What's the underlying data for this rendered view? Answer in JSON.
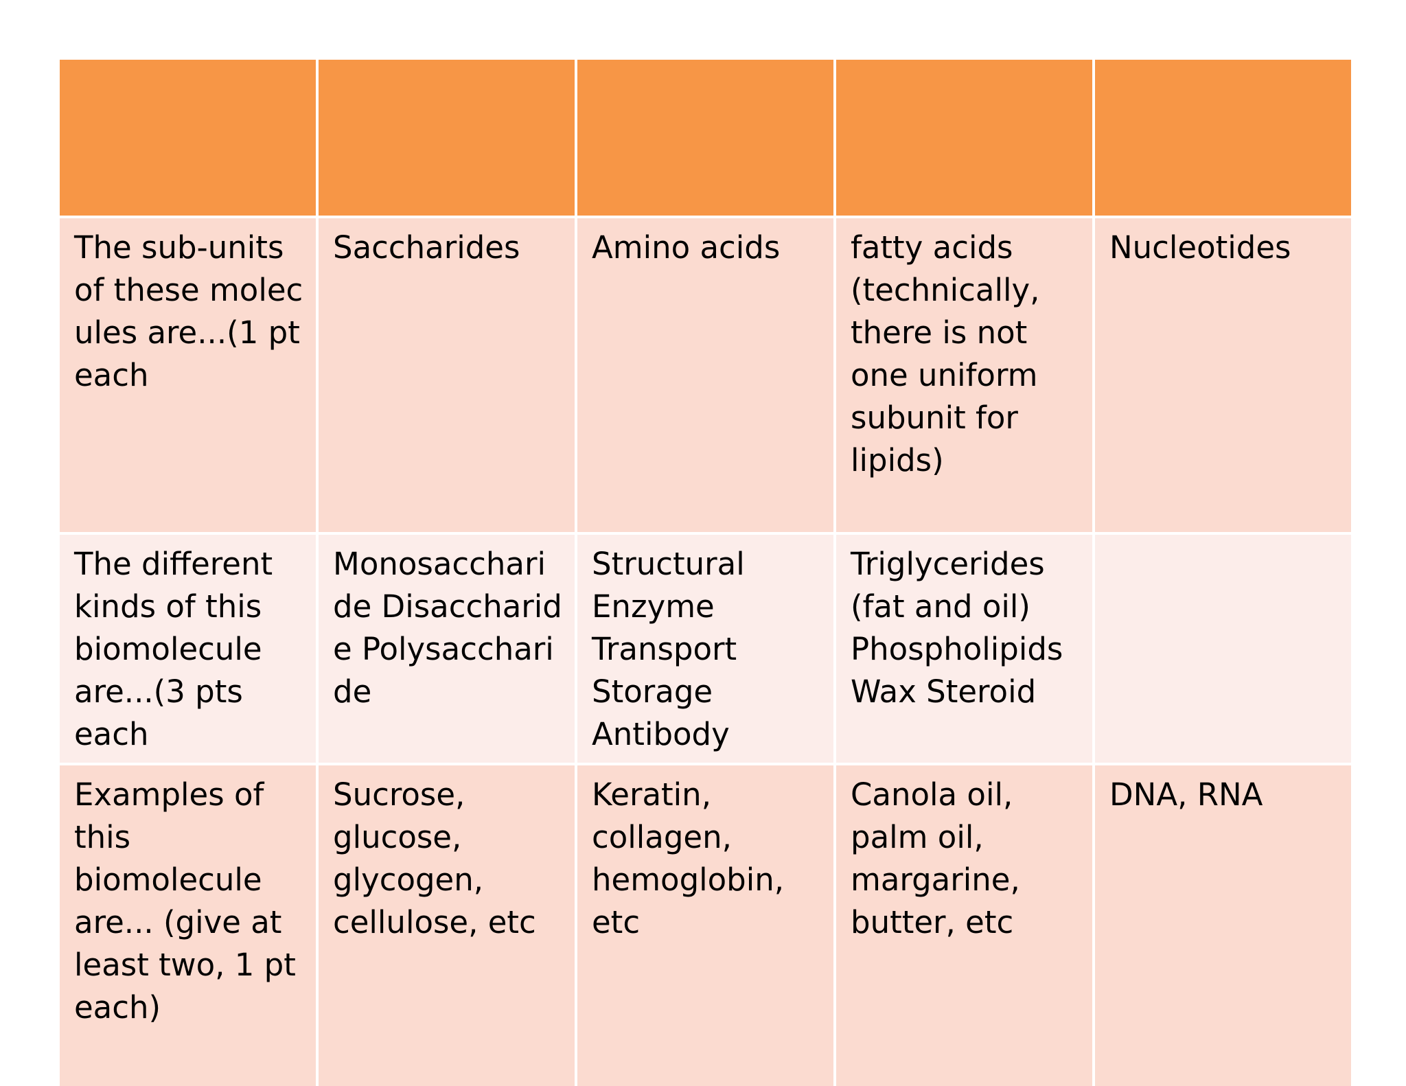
{
  "colors": {
    "header": "#f79646",
    "row_dark": "#fbdbd0",
    "row_light": "#fcedea"
  },
  "table": {
    "header": [
      "",
      "",
      "",
      "",
      ""
    ],
    "rows": [
      [
        "The sub-units of these molecules are...(1 pt each",
        "Saccharides",
        "Amino acids",
        "fatty acids (technically, there is not one uniform subunit for lipids)",
        "Nucleotides"
      ],
      [
        "The different kinds of this biomolecule are...(3 pts each",
        "Monosaccharide Disaccharide Polysaccharide",
        "Structural Enzyme Transport Storage Antibody",
        "Triglycerides (fat and oil) Phospholipids Wax Steroid",
        ""
      ],
      [
        "Examples of this biomolecule are... (give at least two, 1 pt each)",
        "Sucrose, glucose, glycogen, cellulose, etc",
        "Keratin, collagen, hemoglobin, etc",
        "Canola oil, palm oil, margarine, butter, etc",
        "DNA, RNA"
      ]
    ]
  }
}
